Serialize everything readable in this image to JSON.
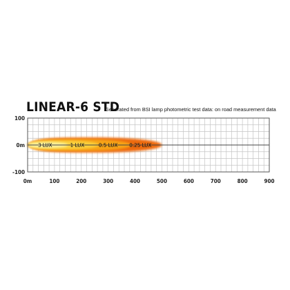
{
  "chart_data": {
    "type": "area",
    "title": "LINEAR-6 STD",
    "subtitle": "Generated from BSI lamp photometric test data: on road measurement data",
    "x_ticks": [
      "0m",
      "100",
      "200",
      "300",
      "400",
      "500",
      "600",
      "700",
      "800",
      "900"
    ],
    "y_ticks": [
      "100",
      "0m",
      "-100"
    ],
    "xlim": [
      0,
      900
    ],
    "ylim": [
      -100,
      100
    ],
    "grid": true,
    "series": [
      {
        "name": "0.25 LUX",
        "reach_m": 500,
        "half_width_m": 28,
        "color": "#ee6a10",
        "label_x": 420
      },
      {
        "name": "0.5 LUX",
        "reach_m": 385,
        "half_width_m": 22,
        "color": "#f7a418",
        "label_x": 300
      },
      {
        "name": "1 LUX",
        "reach_m": 265,
        "half_width_m": 16,
        "color": "#fbd13c",
        "label_x": 185
      },
      {
        "name": "3 LUX",
        "reach_m": 150,
        "half_width_m": 11,
        "color": "#fdf29c",
        "label_x": 65
      }
    ]
  }
}
